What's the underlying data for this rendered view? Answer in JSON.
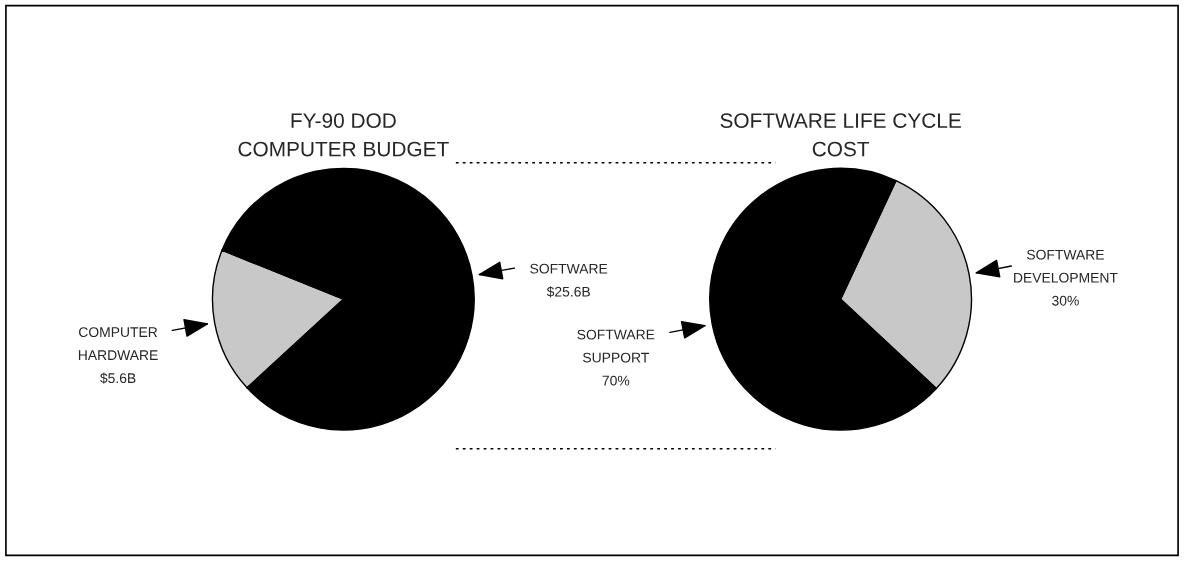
{
  "chart_data": [
    {
      "type": "pie",
      "title": "FY-90 DOD\nCOMPUTER BUDGET",
      "categories": [
        "COMPUTER HARDWARE",
        "SOFTWARE"
      ],
      "values": [
        5.6,
        25.6
      ],
      "value_labels": [
        "$5.6B",
        "$25.6B"
      ],
      "colors": [
        "#c8c8c8",
        "#000000"
      ]
    },
    {
      "type": "pie",
      "title": "SOFTWARE LIFE CYCLE\nCOST",
      "categories": [
        "SOFTWARE DEVELOPMENT",
        "SOFTWARE SUPPORT"
      ],
      "values": [
        30,
        70
      ],
      "value_labels": [
        "30%",
        "70%"
      ],
      "colors": [
        "#c8c8c8",
        "#000000"
      ]
    }
  ]
}
